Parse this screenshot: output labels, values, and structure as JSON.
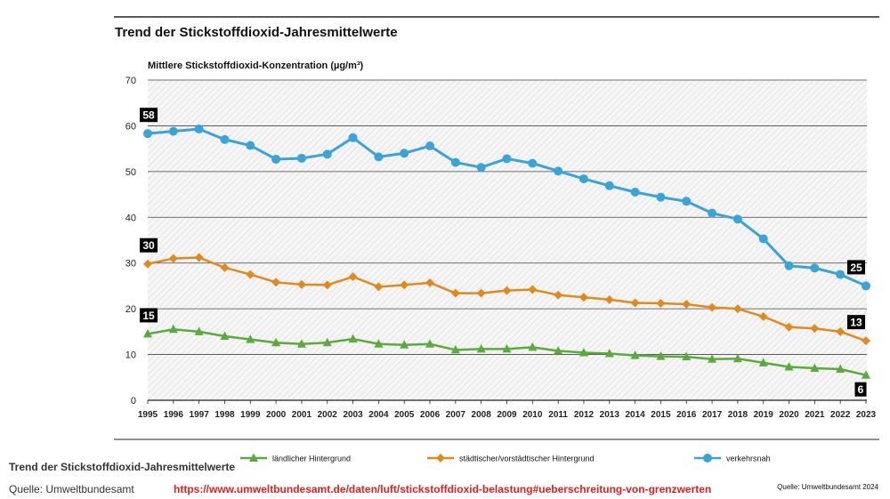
{
  "chart_data": {
    "type": "line",
    "title": "Trend der Stickstoffdioxid-Jahresmittelwerte",
    "ylabel": "Mittlere Stickstoffdioxid-Konzentration (µg/m³)",
    "xlabel": "",
    "ylim": [
      0,
      70
    ],
    "yticks": [
      "0",
      "10",
      "20",
      "30",
      "40",
      "50",
      "60",
      "70"
    ],
    "categories": [
      "1995",
      "1996",
      "1997",
      "1998",
      "1999",
      "2000",
      "2001",
      "2002",
      "2003",
      "2004",
      "2005",
      "2006",
      "2007",
      "2008",
      "2009",
      "2010",
      "2011",
      "2012",
      "2013",
      "2014",
      "2015",
      "2016",
      "2017",
      "2018",
      "2019",
      "2020",
      "2021",
      "2022",
      "2023"
    ],
    "series": [
      {
        "name": "ländlicher Hintergrund",
        "color": "#5aab3c",
        "marker": "triangle",
        "values": [
          14.5,
          15.5,
          15,
          14,
          13.3,
          12.6,
          12.3,
          12.6,
          13.4,
          12.3,
          12.1,
          12.3,
          11,
          11.2,
          11.2,
          11.6,
          10.8,
          10.4,
          10.2,
          9.8,
          9.6,
          9.5,
          9,
          9.1,
          8.2,
          7.3,
          7,
          6.8,
          5.5
        ],
        "label_first": "15",
        "label_last": "6"
      },
      {
        "name": "städtischer/vorstädtischer Hintergrund",
        "color": "#e08a1e",
        "marker": "diamond",
        "values": [
          29.8,
          31,
          31.2,
          29,
          27.5,
          25.8,
          25.3,
          25.2,
          27,
          24.8,
          25.2,
          25.7,
          23.4,
          23.4,
          24,
          24.2,
          23,
          22.5,
          22,
          21.3,
          21.2,
          21,
          20.3,
          20,
          18.3,
          16,
          15.7,
          15,
          13
        ],
        "label_first": "30",
        "label_last": "13"
      },
      {
        "name": "verkehrsnah",
        "color": "#3aa3d8",
        "marker": "circle",
        "values": [
          58.3,
          58.8,
          59.3,
          57,
          55.7,
          52.7,
          52.9,
          53.8,
          57.4,
          53.2,
          54,
          55.6,
          52,
          50.9,
          52.8,
          51.8,
          50.1,
          48.4,
          46.9,
          45.5,
          44.4,
          43.5,
          40.9,
          39.6,
          35.3,
          29.4,
          28.9,
          27.5,
          25
        ],
        "label_first": "58",
        "label_last": "25"
      }
    ],
    "legend_position": "bottom",
    "source_note": "Quelle: Umweltbundesamt 2024"
  },
  "footer": {
    "caption": "Trend der Stickstoffdioxid-Jahresmittelwerte",
    "source": "Quelle: Umweltbundesamt",
    "url": "https://www.umweltbundesamt.de/daten/luft/stickstoffdioxid-belastung#ueberschreitung-von-grenzwerten"
  }
}
